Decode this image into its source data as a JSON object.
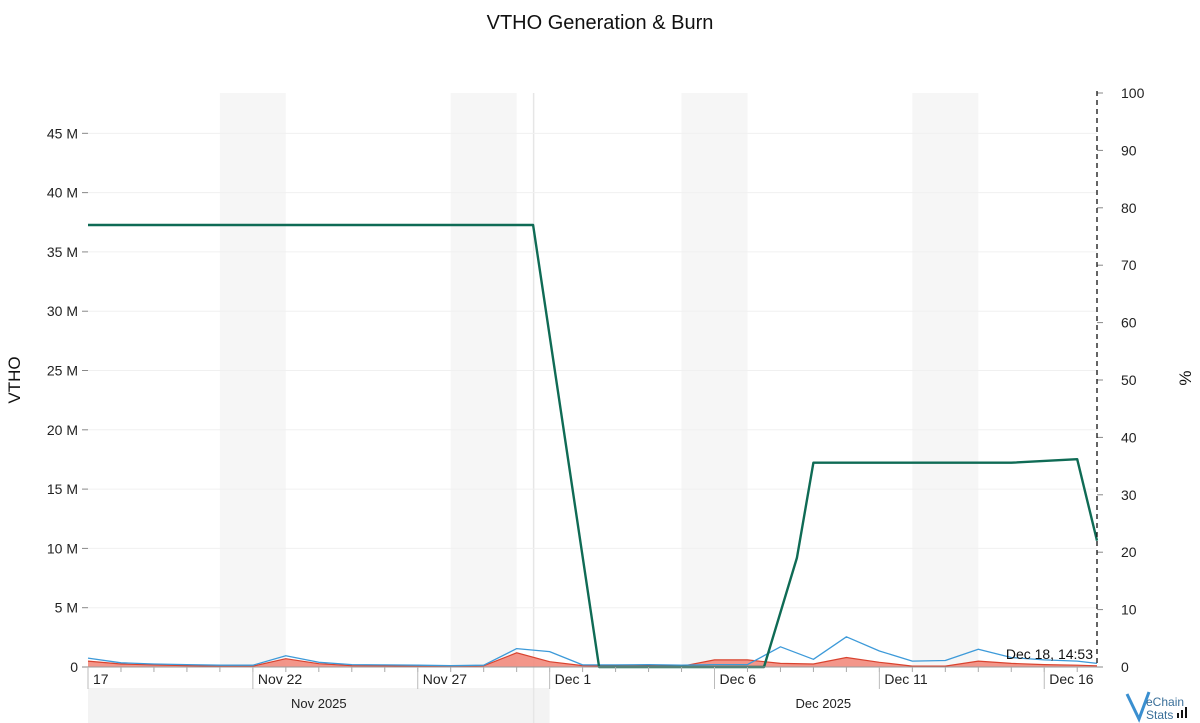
{
  "chart_data": {
    "type": "line",
    "title": "VTHO Generation & Burn",
    "ylabel_left": "VTHO",
    "ylabel_right": "%",
    "y_left_ticks": [
      "0",
      "5 M",
      "10 M",
      "15 M",
      "20 M",
      "25 M",
      "30 M",
      "35 M",
      "40 M",
      "45 M"
    ],
    "y_left_values": [
      0,
      5000000,
      10000000,
      15000000,
      20000000,
      25000000,
      30000000,
      35000000,
      40000000,
      45000000
    ],
    "y_left_lim": [
      0,
      48400000
    ],
    "y_right_ticks": [
      "0",
      "10",
      "20",
      "30",
      "40",
      "50",
      "60",
      "70",
      "80",
      "90",
      "100"
    ],
    "y_right_values": [
      0,
      10,
      20,
      30,
      40,
      50,
      60,
      70,
      80,
      90,
      100
    ],
    "y_right_lim": [
      0,
      100
    ],
    "x_lim": [
      "2025-11-17",
      "2025-12-17.6"
    ],
    "x_ticks": [
      {
        "date": "2025-11-17",
        "label": "17"
      },
      {
        "date": "2025-11-22",
        "label": "Nov 22"
      },
      {
        "date": "2025-11-27",
        "label": "Nov 27"
      },
      {
        "date": "2025-12-01",
        "label": "Dec 1"
      },
      {
        "date": "2025-12-06",
        "label": "Dec 6"
      },
      {
        "date": "2025-12-11",
        "label": "Dec 11"
      },
      {
        "date": "2025-12-16",
        "label": "Dec 16"
      }
    ],
    "months": [
      {
        "label": "Nov 2025",
        "start": "2025-11-17",
        "end": "2025-12-01"
      },
      {
        "label": "Dec 2025",
        "start": "2025-12-01",
        "end": "2025-12-17.6"
      }
    ],
    "weekend_bands": [
      [
        "2025-11-21",
        "2025-11-23"
      ],
      [
        "2025-11-28",
        "2025-11-30"
      ],
      [
        "2025-12-05",
        "2025-12-07"
      ],
      [
        "2025-12-12",
        "2025-12-14"
      ]
    ],
    "cursor_label": "Dec 18, 14:53",
    "series": [
      {
        "axis": "left",
        "style": "area",
        "color": "#f28b7d",
        "stroke": "#d9432f",
        "x": [
          "2025-11-17",
          "2025-11-18",
          "2025-11-19",
          "2025-11-20",
          "2025-11-21",
          "2025-11-22",
          "2025-11-23",
          "2025-11-24",
          "2025-11-25",
          "2025-11-26",
          "2025-11-27",
          "2025-11-28",
          "2025-11-29",
          "2025-11-30",
          "2025-12-01",
          "2025-12-02",
          "2025-12-03",
          "2025-12-04",
          "2025-12-05",
          "2025-12-06",
          "2025-12-07",
          "2025-12-08",
          "2025-12-09",
          "2025-12-10",
          "2025-12-11",
          "2025-12-12",
          "2025-12-13",
          "2025-12-14",
          "2025-12-15",
          "2025-12-16",
          "2025-12-17",
          "2025-12-17.6"
        ],
        "values": [
          500000,
          250000,
          180000,
          120000,
          80000,
          80000,
          700000,
          280000,
          120000,
          100000,
          80000,
          60000,
          100000,
          1200000,
          450000,
          120000,
          80000,
          120000,
          60000,
          600000,
          600000,
          300000,
          250000,
          800000,
          400000,
          80000,
          80000,
          500000,
          300000,
          200000,
          150000,
          100000
        ]
      },
      {
        "axis": "left",
        "style": "line",
        "color": "#3d9ad9",
        "x": [
          "2025-11-17",
          "2025-11-18",
          "2025-11-19",
          "2025-11-20",
          "2025-11-21",
          "2025-11-22",
          "2025-11-23",
          "2025-11-24",
          "2025-11-25",
          "2025-11-26",
          "2025-11-27",
          "2025-11-28",
          "2025-11-29",
          "2025-11-30",
          "2025-12-01",
          "2025-12-02",
          "2025-12-03",
          "2025-12-04",
          "2025-12-05",
          "2025-12-06",
          "2025-12-07",
          "2025-12-08",
          "2025-12-09",
          "2025-12-10",
          "2025-12-11",
          "2025-12-12",
          "2025-12-13",
          "2025-12-14",
          "2025-12-15",
          "2025-12-16",
          "2025-12-17",
          "2025-12-17.6"
        ],
        "values": [
          750000,
          350000,
          250000,
          200000,
          150000,
          150000,
          950000,
          400000,
          200000,
          180000,
          150000,
          120000,
          150000,
          1550000,
          1300000,
          180000,
          180000,
          200000,
          150000,
          200000,
          200000,
          1700000,
          650000,
          2550000,
          1350000,
          500000,
          550000,
          1500000,
          800000,
          600000,
          500000,
          300000
        ]
      },
      {
        "axis": "right",
        "style": "line",
        "color": "#0f6b55",
        "x": [
          "2025-11-17",
          "2025-11-30.5",
          "2025-12-02.5",
          "2025-12-07.5",
          "2025-12-08.5",
          "2025-12-09",
          "2025-12-15",
          "2025-12-17",
          "2025-12-17.6"
        ],
        "values": [
          77.0,
          77.0,
          0,
          0,
          19,
          35.6,
          35.6,
          36.2,
          22
        ]
      }
    ]
  },
  "logo": {
    "line1": "eChain",
    "line2": "Stats"
  }
}
